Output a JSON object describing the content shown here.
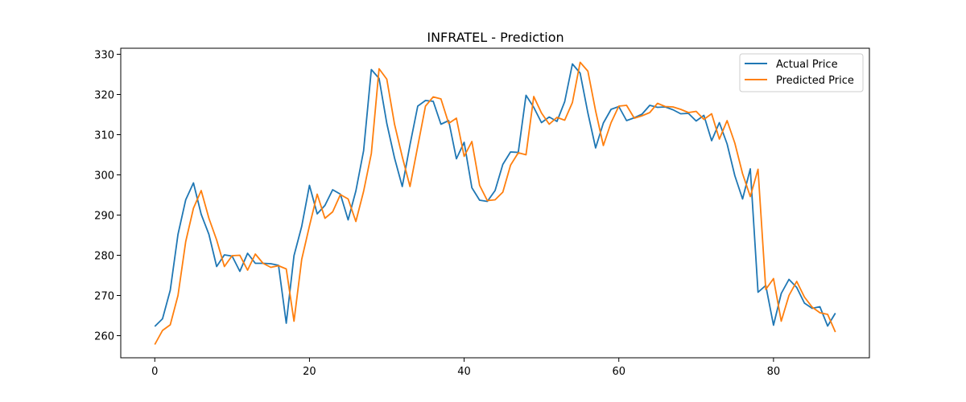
{
  "chart_data": {
    "type": "line",
    "title": "INFRATEL - Prediction",
    "xlabel": "",
    "ylabel": "",
    "xlim": [
      -4.4,
      92.4
    ],
    "ylim": [
      254.5,
      331.5
    ],
    "xticks": [
      0,
      20,
      40,
      60,
      80
    ],
    "yticks": [
      260,
      270,
      280,
      290,
      300,
      310,
      320,
      330
    ],
    "grid": false,
    "legend": "top-right",
    "series": [
      {
        "name": "Actual Price",
        "color": "#1f77b4",
        "values": [
          262.3,
          264.2,
          271.3,
          285.2,
          293.8,
          298.0,
          290.2,
          285.2,
          277.2,
          280.1,
          279.8,
          276.0,
          280.5,
          278.0,
          278.0,
          277.9,
          277.5,
          263.1,
          279.9,
          287.2,
          297.4,
          290.3,
          292.4,
          296.3,
          295.2,
          288.8,
          296.0,
          306.0,
          326.2,
          324.0,
          312.8,
          304.2,
          297.1,
          307.5,
          317.1,
          318.5,
          318.3,
          312.6,
          313.5,
          304.0,
          308.1,
          296.8,
          293.7,
          293.4,
          296.1,
          302.6,
          305.7,
          305.6,
          319.8,
          316.8,
          313.0,
          314.4,
          313.3,
          318.2,
          327.6,
          325.3,
          315.4,
          306.7,
          312.9,
          316.3,
          317.0,
          313.5,
          314.2,
          315.1,
          317.3,
          316.8,
          316.9,
          316.2,
          315.2,
          315.3,
          313.4,
          314.8,
          308.5,
          313.0,
          307.7,
          299.8,
          294.0,
          301.5,
          270.8,
          272.5,
          262.6,
          270.5,
          274.0,
          272.0,
          268.1,
          266.8,
          267.2,
          262.4,
          265.6
        ]
      },
      {
        "name": "Predicted Price",
        "color": "#ff7f0e",
        "values": [
          257.8,
          261.3,
          262.7,
          270.0,
          283.4,
          291.7,
          296.1,
          289.2,
          283.8,
          277.2,
          279.9,
          280.0,
          276.3,
          280.3,
          278.0,
          277.0,
          277.4,
          276.6,
          263.6,
          279.0,
          287.3,
          295.2,
          289.2,
          290.8,
          295.1,
          294.0,
          288.4,
          295.9,
          305.3,
          326.4,
          323.8,
          312.6,
          304.5,
          297.1,
          307.1,
          317.1,
          319.4,
          318.9,
          312.8,
          314.1,
          304.6,
          308.3,
          297.4,
          293.6,
          293.8,
          295.7,
          302.4,
          305.5,
          305.0,
          319.5,
          315.4,
          312.6,
          314.3,
          313.6,
          318.0,
          328.0,
          325.8,
          315.9,
          307.3,
          313.0,
          317.1,
          317.3,
          314.1,
          314.7,
          315.5,
          317.8,
          317.0,
          316.9,
          316.3,
          315.5,
          315.8,
          313.8,
          315.2,
          308.9,
          313.5,
          307.9,
          300.3,
          294.6,
          301.4,
          271.5,
          274.2,
          263.6,
          270.0,
          273.5,
          269.6,
          267.1,
          265.7,
          265.3,
          260.9
        ]
      }
    ]
  }
}
